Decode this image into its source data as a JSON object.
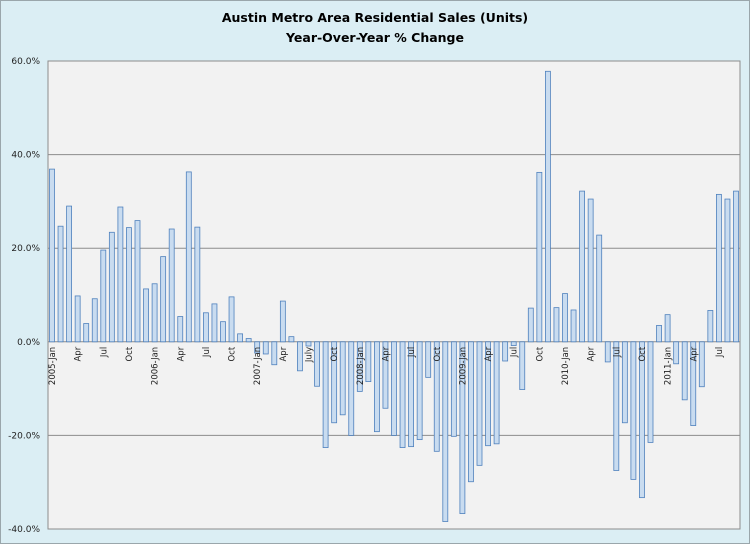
{
  "chart_data": {
    "type": "bar",
    "title": "Austin Metro Area Residential Sales (Units)",
    "subtitle": "Year-Over-Year % Change",
    "xlabel": "",
    "ylabel": "",
    "ylim": [
      -40,
      60
    ],
    "yticks": [
      "60.0%",
      "40.0%",
      "20.0%",
      "0.0%",
      "-20.0%",
      "-40.0%"
    ],
    "ytick_values": [
      60,
      40,
      20,
      0,
      -20,
      -40
    ],
    "grid": true,
    "legend": "none",
    "colors": {
      "bar_fill": "#c9dcf0",
      "bar_stroke": "#4f81bd",
      "plot_bg": "#f2f2f2",
      "outer_bg": "#dbeef4",
      "grid": "#8c8c8c"
    },
    "categories": [
      "2005-Jan",
      "",
      "",
      "Apr",
      "",
      "",
      "Jul",
      "",
      "",
      "Oct",
      "",
      "",
      "2006-Jan",
      "",
      "",
      "Apr",
      "",
      "",
      "Jul",
      "",
      "",
      "Oct",
      "",
      "",
      "2007-Jan",
      "",
      "",
      "Apr",
      "",
      "",
      "July",
      "",
      "",
      "Oct",
      "",
      "",
      "2008-Jan",
      "",
      "",
      "Apr",
      "",
      "",
      "Jul",
      "",
      "",
      "Oct",
      "",
      "",
      "2009-Jan",
      "",
      "",
      "Apr",
      "",
      "",
      "Jul",
      "",
      "",
      "Oct",
      "",
      "",
      "2010-Jan",
      "",
      "",
      "Apr",
      "",
      "",
      "Jul",
      "",
      "",
      "Oct",
      "",
      "",
      "2011-Jan",
      "",
      "",
      "Apr",
      "",
      "",
      "Jul",
      "",
      ""
    ],
    "values": [
      36.9,
      24.7,
      29.0,
      9.8,
      3.9,
      9.2,
      19.6,
      23.4,
      28.8,
      24.4,
      25.9,
      11.3,
      12.4,
      18.2,
      24.1,
      5.4,
      36.3,
      24.5,
      6.2,
      8.1,
      4.3,
      9.6,
      1.7,
      0.7,
      -2.4,
      -2.6,
      -4.9,
      8.7,
      1.1,
      -6.2,
      -0.9,
      -9.5,
      -22.6,
      -17.3,
      -15.6,
      -20.0,
      -10.6,
      -8.5,
      -19.2,
      -14.2,
      -20.0,
      -22.6,
      -22.4,
      -20.9,
      -7.6,
      -23.4,
      -38.4,
      -20.2,
      -36.7,
      -29.9,
      -26.4,
      -22.2,
      -21.8,
      -4.1,
      -0.8,
      -10.2,
      7.2,
      36.2,
      57.8,
      7.3,
      10.3,
      6.8,
      32.2,
      30.5,
      22.8,
      -4.3,
      -27.5,
      -17.3,
      -29.4,
      -33.3,
      -21.5,
      3.5,
      5.8,
      -4.7,
      -12.4,
      -17.9,
      -9.6,
      6.7,
      31.5,
      30.5,
      32.2
    ]
  }
}
